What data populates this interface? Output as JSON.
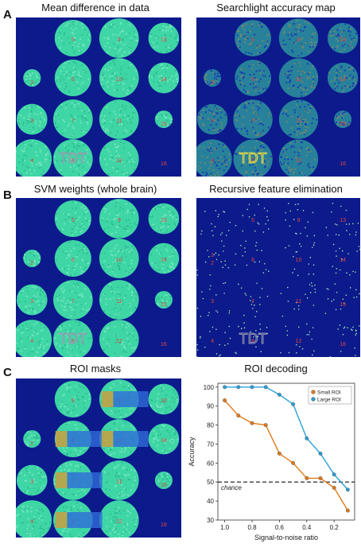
{
  "panels": [
    {
      "letter": "A",
      "left_title": "Mean difference in data",
      "right_title": "Searchlight accuracy map"
    },
    {
      "letter": "B",
      "left_title": "SVM weights (whole brain)",
      "right_title": "Recursive feature elimination"
    },
    {
      "letter": "C",
      "left_title": "ROI masks",
      "right_title": "ROI decoding"
    }
  ],
  "overlay_text": "TDT",
  "region_numbers": [
    "1",
    "2",
    "3",
    "4",
    "5",
    "6",
    "7",
    "8",
    "9",
    "10",
    "11",
    "12",
    "13",
    "14",
    "15",
    "16"
  ],
  "colors": {
    "background": "#0c1a8c",
    "circle_fill": "#3fd6a6",
    "number_color": "#e8453c",
    "roi_small": "#c8a040",
    "roi_large": "#2f6cd8",
    "small_roi_line": "#e07b1a",
    "large_roi_line": "#2aa0d8"
  },
  "chart_data": {
    "type": "line",
    "title": "ROI decoding",
    "xlabel": "Signal-to-noise ratio",
    "ylabel": "Accuracy",
    "x": [
      1.0,
      0.9,
      0.8,
      0.7,
      0.6,
      0.5,
      0.4,
      0.3,
      0.2,
      0.1
    ],
    "xticks": [
      "1.0",
      "0.8",
      "0.6",
      "0.4",
      "0.2"
    ],
    "xtick_values": [
      1.0,
      0.8,
      0.6,
      0.4,
      0.2
    ],
    "xlim": [
      1.05,
      0.05
    ],
    "ylim": [
      30,
      102
    ],
    "yticks": [
      30,
      40,
      50,
      60,
      70,
      80,
      90,
      100
    ],
    "series": [
      {
        "name": "Small ROI",
        "color": "#e07b1a",
        "values": [
          93,
          85,
          81,
          80,
          65,
          60,
          52,
          52,
          47,
          35
        ]
      },
      {
        "name": "Large ROI",
        "color": "#2aa0d8",
        "values": [
          100,
          100,
          100,
          100,
          96,
          91,
          73,
          65,
          54,
          46
        ]
      }
    ],
    "chance": {
      "value": 50,
      "label": "chance"
    },
    "legend_position": "top-right",
    "grid": false
  }
}
